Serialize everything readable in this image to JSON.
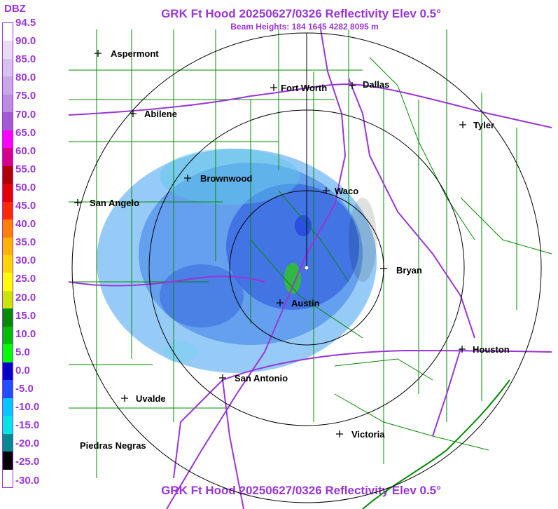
{
  "title": "GRK Ft Hood 20250627/0326 Reflectivity Elev 0.5°",
  "subtitle": "Beam Heights: 184 1645 4282 8095 m",
  "legend": {
    "title": "DBZ",
    "labels": [
      "94.5",
      "90.0",
      "85.0",
      "80.0",
      "75.0",
      "70.0",
      "65.0",
      "60.0",
      "55.0",
      "50.0",
      "45.0",
      "40.0",
      "35.0",
      "30.0",
      "25.0",
      "20.0",
      "15.0",
      "10.0",
      "5.0",
      "0.0",
      "-5.0",
      "-10.0",
      "-15.0",
      "-20.0",
      "-25.0",
      "-30.0"
    ],
    "colors": [
      "#ffffff",
      "#e8dcf0",
      "#d6c2ea",
      "#c9a8e6",
      "#b98ce0",
      "#a05ad6",
      "#ff00ff",
      "#d6008a",
      "#b00000",
      "#e60000",
      "#ff2800",
      "#ff7f00",
      "#ffb400",
      "#ffd700",
      "#ffff00",
      "#c8e600",
      "#008c00",
      "#00be00",
      "#00ff00",
      "#0000c8",
      "#1e50ff",
      "#00c8ff",
      "#00e6e6",
      "#008c8c",
      "#000000",
      "#ffffff"
    ]
  },
  "cities": [
    {
      "name": "Aspermont",
      "color": "#000000"
    },
    {
      "name": "Fort Worth",
      "color": "#000000"
    },
    {
      "name": "Dallas",
      "color": "#000000"
    },
    {
      "name": "Abilene",
      "color": "#000000"
    },
    {
      "name": "Tyler",
      "color": "#000000"
    },
    {
      "name": "Brownwood",
      "color": "#000000"
    },
    {
      "name": "Waco",
      "color": "#000000"
    },
    {
      "name": "San Angelo",
      "color": "#000000"
    },
    {
      "name": "Bryan",
      "color": "#000000"
    },
    {
      "name": "Austin",
      "color": "#000000"
    },
    {
      "name": "Houston",
      "color": "#000000"
    },
    {
      "name": "San Antonio",
      "color": "#000000"
    },
    {
      "name": "Uvalde",
      "color": "#000000"
    },
    {
      "name": "Victoria",
      "color": "#000000"
    },
    {
      "name": "Piedras Negras",
      "color": "#000000"
    }
  ],
  "colors": {
    "accent": "#9a35d8",
    "county_lines": "#008c00",
    "highways": "#9a35d8",
    "range_rings": "#000000"
  }
}
